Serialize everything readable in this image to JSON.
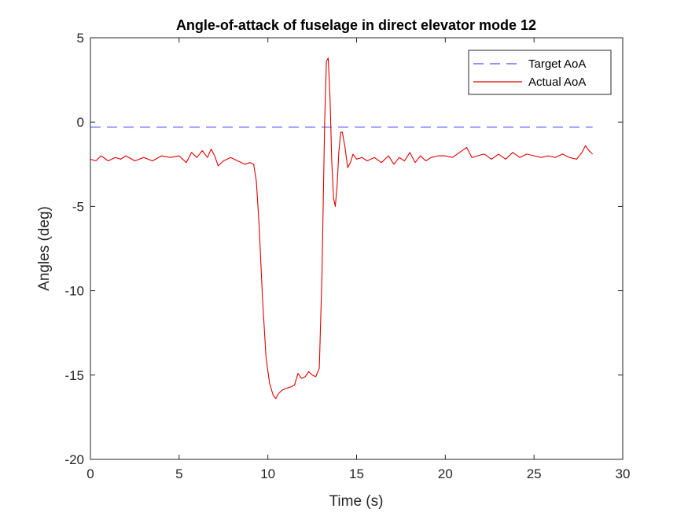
{
  "chart_data": {
    "type": "line",
    "title": "Angle-of-attack of fuselage in direct elevator mode 12",
    "xlabel": "Time (s)",
    "ylabel": "Angles (deg)",
    "xlim": [
      0,
      30
    ],
    "ylim": [
      -20,
      5
    ],
    "xticks": [
      0,
      5,
      10,
      15,
      20,
      25,
      30
    ],
    "yticks": [
      5,
      0,
      -5,
      -10,
      -15,
      -20
    ],
    "xtick_labels": [
      "0",
      "5",
      "10",
      "15",
      "20",
      "25",
      "30"
    ],
    "ytick_labels": [
      "5",
      "0",
      "-5",
      "-10",
      "-15",
      "-20"
    ],
    "grid": false,
    "legend_position": "top-right",
    "series": [
      {
        "name": "Target AoA",
        "color": "#4d4dff",
        "style": "dashed",
        "x": [
          0,
          28.3
        ],
        "y": [
          -0.3,
          -0.3
        ]
      },
      {
        "name": "Actual AoA",
        "color": "#e00000",
        "style": "solid",
        "x": [
          0,
          0.3,
          0.6,
          1.0,
          1.4,
          1.7,
          2.0,
          2.5,
          3.0,
          3.5,
          4.0,
          4.5,
          5.0,
          5.4,
          5.7,
          6.0,
          6.3,
          6.6,
          6.8,
          7.0,
          7.2,
          7.5,
          7.9,
          8.3,
          8.7,
          9.0,
          9.2,
          9.35,
          9.5,
          9.7,
          9.9,
          10.1,
          10.3,
          10.45,
          10.6,
          10.8,
          11.0,
          11.3,
          11.5,
          11.7,
          11.9,
          12.1,
          12.3,
          12.5,
          12.7,
          12.9,
          13.05,
          13.2,
          13.3,
          13.4,
          13.5,
          13.6,
          13.7,
          13.8,
          13.9,
          14.0,
          14.1,
          14.2,
          14.35,
          14.5,
          14.65,
          14.8,
          15.0,
          15.3,
          15.6,
          16.0,
          16.4,
          16.8,
          17.1,
          17.4,
          17.7,
          18.0,
          18.3,
          18.6,
          18.9,
          19.2,
          19.6,
          20.0,
          20.4,
          20.8,
          21.2,
          21.5,
          21.8,
          22.2,
          22.6,
          23.0,
          23.4,
          23.8,
          24.2,
          24.6,
          25.0,
          25.4,
          25.8,
          26.2,
          26.6,
          27.0,
          27.4,
          27.7,
          27.9,
          28.1,
          28.3
        ],
        "y": [
          -2.2,
          -2.3,
          -2.0,
          -2.3,
          -2.1,
          -2.2,
          -2.0,
          -2.3,
          -2.1,
          -2.3,
          -2.0,
          -2.1,
          -2.0,
          -2.4,
          -1.8,
          -2.1,
          -1.7,
          -2.1,
          -1.6,
          -2.0,
          -2.6,
          -2.3,
          -2.1,
          -2.3,
          -2.5,
          -2.4,
          -2.5,
          -3.5,
          -6.0,
          -10.5,
          -14.0,
          -15.5,
          -16.2,
          -16.4,
          -16.1,
          -15.9,
          -15.8,
          -15.7,
          -15.6,
          -14.9,
          -15.2,
          -15.1,
          -14.8,
          -15.0,
          -15.1,
          -14.6,
          -9.0,
          0.0,
          3.6,
          3.8,
          1.5,
          -2.3,
          -4.5,
          -5.0,
          -3.8,
          -1.8,
          -0.6,
          -0.6,
          -1.5,
          -2.7,
          -2.4,
          -1.9,
          -2.2,
          -2.1,
          -2.3,
          -2.1,
          -2.4,
          -2.0,
          -2.5,
          -2.1,
          -2.3,
          -1.8,
          -2.4,
          -2.0,
          -2.3,
          -2.1,
          -2.0,
          -2.0,
          -2.1,
          -1.8,
          -1.5,
          -2.1,
          -2.0,
          -1.9,
          -2.2,
          -1.9,
          -2.2,
          -1.8,
          -2.1,
          -1.9,
          -2.0,
          -2.1,
          -2.0,
          -2.1,
          -1.9,
          -2.1,
          -2.2,
          -1.8,
          -1.4,
          -1.7,
          -1.9
        ]
      }
    ]
  }
}
